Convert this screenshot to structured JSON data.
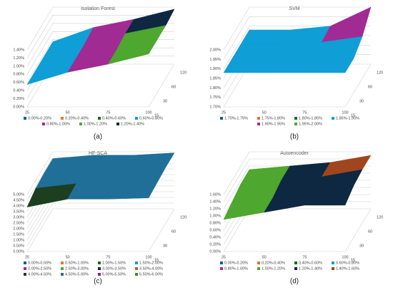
{
  "chart_data": [
    {
      "type": "surface",
      "title": "Isolation Forest",
      "caption": "(a)",
      "x": [
        25,
        50,
        75,
        100
      ],
      "y": [
        15,
        30,
        60,
        120
      ],
      "z": [
        [
          0.55,
          0.85,
          1.05,
          1.3
        ],
        [
          0.55,
          0.85,
          1.05,
          1.3
        ],
        [
          0.55,
          0.85,
          1.1,
          1.3
        ],
        [
          0.55,
          0.9,
          1.1,
          1.35
        ]
      ],
      "zlim": [
        0,
        1.4
      ],
      "zticks": [
        {
          "value": 0,
          "label": "0.00%"
        },
        {
          "value": 0.2,
          "label": "0.20%"
        },
        {
          "value": 0.4,
          "label": "0.40%"
        },
        {
          "value": 0.6,
          "label": "0.60%"
        },
        {
          "value": 0.8,
          "label": "0.80%"
        },
        {
          "value": 1,
          "label": "1.00%"
        },
        {
          "value": 1.2,
          "label": "1.20%"
        },
        {
          "value": 1.4,
          "label": "1.40%"
        }
      ],
      "bands": [
        {
          "name": "0.00%-0.20%",
          "range": [
            0,
            0.2
          ],
          "color": "#156082"
        },
        {
          "name": "0.20%-0.40%",
          "range": [
            0.2,
            0.4
          ],
          "color": "#e97132"
        },
        {
          "name": "0.40%-0.60%",
          "range": [
            0.4,
            0.6
          ],
          "color": "#196b24"
        },
        {
          "name": "0.60%-0.80%",
          "range": [
            0.6,
            0.8
          ],
          "color": "#0f9ed5"
        },
        {
          "name": "0.80%-1.00%",
          "range": [
            0.8,
            1
          ],
          "color": "#a02b93"
        },
        {
          "name": "1.00%-1.20%",
          "range": [
            1,
            1.2
          ],
          "color": "#4ea72e"
        },
        {
          "name": "1.20%-1.40%",
          "range": [
            1.2,
            1.4
          ],
          "color": "#0e2841"
        }
      ]
    },
    {
      "type": "surface",
      "title": "SVM",
      "caption": "(b)",
      "x": [
        25,
        50,
        75,
        100
      ],
      "y": [
        15,
        30,
        60,
        120
      ],
      "z": [
        [
          1.88,
          1.88,
          1.88,
          1.88
        ],
        [
          1.88,
          1.88,
          1.88,
          1.88
        ],
        [
          1.88,
          1.88,
          1.89,
          1.92
        ],
        [
          1.88,
          1.88,
          1.9,
          2.0
        ]
      ],
      "zlim": [
        1.7,
        2.0
      ],
      "zticks": [
        {
          "value": 1.7,
          "label": "1.70%"
        },
        {
          "value": 1.75,
          "label": "1.75%"
        },
        {
          "value": 1.8,
          "label": "1.80%"
        },
        {
          "value": 1.85,
          "label": "1.85%"
        },
        {
          "value": 1.9,
          "label": "1.90%"
        },
        {
          "value": 1.95,
          "label": "1.95%"
        },
        {
          "value": 2.0,
          "label": "2.00%"
        }
      ],
      "bands": [
        {
          "name": "1.70%-1.75%",
          "range": [
            1.7,
            1.75
          ],
          "color": "#156082"
        },
        {
          "name": "1.75%-1.80%",
          "range": [
            1.75,
            1.8
          ],
          "color": "#e97132"
        },
        {
          "name": "1.80%-1.85%",
          "range": [
            1.8,
            1.85
          ],
          "color": "#196b24"
        },
        {
          "name": "1.85%-1.90%",
          "range": [
            1.85,
            1.9
          ],
          "color": "#0f9ed5"
        },
        {
          "name": "1.90%-1.95%",
          "range": [
            1.9,
            1.95
          ],
          "color": "#a02b93"
        },
        {
          "name": "1.95%-2.00%",
          "range": [
            1.95,
            2.0
          ],
          "color": "#4ea72e"
        }
      ]
    },
    {
      "type": "surface",
      "title": "HF-SCA",
      "caption": "(c)",
      "x": [
        25,
        50,
        75,
        100
      ],
      "y": [
        15,
        30,
        60,
        120
      ],
      "z": [
        [
          3.9,
          4.6,
          4.6,
          4.7
        ],
        [
          4.3,
          4.7,
          4.7,
          4.8
        ],
        [
          4.4,
          4.7,
          4.7,
          4.9
        ],
        [
          4.4,
          4.7,
          4.7,
          4.9
        ]
      ],
      "zlim": [
        0,
        5
      ],
      "zticks": [
        {
          "value": 0,
          "label": "0.00%"
        },
        {
          "value": 0.5,
          "label": "0.50%"
        },
        {
          "value": 1,
          "label": "1.00%"
        },
        {
          "value": 1.5,
          "label": "1.50%"
        },
        {
          "value": 2,
          "label": "2.00%"
        },
        {
          "value": 2.5,
          "label": "2.50%"
        },
        {
          "value": 3,
          "label": "3.00%"
        },
        {
          "value": 3.5,
          "label": "3.50%"
        },
        {
          "value": 4,
          "label": "4.00%"
        },
        {
          "value": 4.5,
          "label": "4.50%"
        },
        {
          "value": 5,
          "label": "5.00%"
        }
      ],
      "bands": [
        {
          "name": "0.00%-0.50%",
          "range": [
            0,
            0.5
          ],
          "color": "#156082"
        },
        {
          "name": "0.50%-1.00%",
          "range": [
            0.5,
            1
          ],
          "color": "#e97132"
        },
        {
          "name": "1.00%-1.50%",
          "range": [
            1,
            1.5
          ],
          "color": "#196b24"
        },
        {
          "name": "1.50%-2.00%",
          "range": [
            1.5,
            2
          ],
          "color": "#0f9ed5"
        },
        {
          "name": "2.00%-2.50%",
          "range": [
            2,
            2.5
          ],
          "color": "#a02b93"
        },
        {
          "name": "2.50%-3.00%",
          "range": [
            2.5,
            3
          ],
          "color": "#4ea72e"
        },
        {
          "name": "3.00%-3.50%",
          "range": [
            3,
            3.5
          ],
          "color": "#0e2841"
        },
        {
          "name": "3.50%-4.00%",
          "range": [
            3.5,
            4
          ],
          "color": "#c05a28"
        },
        {
          "name": "4.00%-4.50%",
          "range": [
            4,
            4.5
          ],
          "color": "#1c3f1f"
        },
        {
          "name": "4.50%-5.00%",
          "range": [
            4.5,
            5
          ],
          "color": "#1f6f99"
        },
        {
          "name": "5.00%-5.50%",
          "range": [
            5,
            5.5
          ],
          "color": "#7a2a75"
        },
        {
          "name": "5.50%-6.00%",
          "range": [
            5.5,
            6
          ],
          "color": "#3e8a2a"
        }
      ]
    },
    {
      "type": "surface",
      "title": "Autoencoder",
      "caption": "(d)",
      "x": [
        25,
        50,
        75,
        100
      ],
      "y": [
        15,
        30,
        60,
        120
      ],
      "z": [
        [
          0.9,
          1.1,
          1.3,
          1.3
        ],
        [
          1.0,
          1.1,
          1.3,
          1.45
        ],
        [
          1.1,
          1.2,
          1.3,
          1.5
        ],
        [
          1.1,
          1.2,
          1.3,
          1.5
        ]
      ],
      "zlim": [
        0,
        1.6
      ],
      "zticks": [
        {
          "value": 0,
          "label": "0.00%"
        },
        {
          "value": 0.2,
          "label": "0.20%"
        },
        {
          "value": 0.4,
          "label": "0.40%"
        },
        {
          "value": 0.6,
          "label": "0.60%"
        },
        {
          "value": 0.8,
          "label": "0.80%"
        },
        {
          "value": 1,
          "label": "1.00%"
        },
        {
          "value": 1.2,
          "label": "1.20%"
        },
        {
          "value": 1.4,
          "label": "1.40%"
        },
        {
          "value": 1.6,
          "label": "1.60%"
        }
      ],
      "bands": [
        {
          "name": "0.00%-0.20%",
          "range": [
            0,
            0.2
          ],
          "color": "#156082"
        },
        {
          "name": "0.20%-0.40%",
          "range": [
            0.2,
            0.4
          ],
          "color": "#e97132"
        },
        {
          "name": "0.40%-0.60%",
          "range": [
            0.4,
            0.6
          ],
          "color": "#196b24"
        },
        {
          "name": "0.60%-0.80%",
          "range": [
            0.6,
            0.8
          ],
          "color": "#0f9ed5"
        },
        {
          "name": "0.80%-1.00%",
          "range": [
            0.8,
            1
          ],
          "color": "#a02b93"
        },
        {
          "name": "1.00%-1.20%",
          "range": [
            1,
            1.2
          ],
          "color": "#4ea72e"
        },
        {
          "name": "1.20%-1.40%",
          "range": [
            1.2,
            1.4
          ],
          "color": "#0e2841"
        },
        {
          "name": "1.40%-1.60%",
          "range": [
            1.4,
            1.6
          ],
          "color": "#a0461e"
        }
      ]
    }
  ]
}
